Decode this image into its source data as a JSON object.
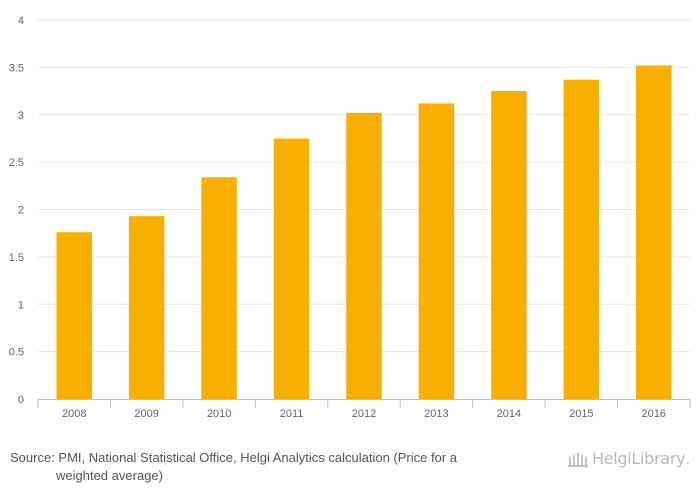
{
  "chart_data": {
    "type": "bar",
    "categories": [
      "2008",
      "2009",
      "2010",
      "2011",
      "2012",
      "2013",
      "2014",
      "2015",
      "2016"
    ],
    "values": [
      1.76,
      1.93,
      2.34,
      2.75,
      3.02,
      3.12,
      3.25,
      3.37,
      3.52
    ],
    "title": "",
    "xlabel": "",
    "ylabel": "",
    "ylim": [
      0,
      4
    ],
    "yticks": [
      "0",
      "0.5",
      "1",
      "1.5",
      "2",
      "2.5",
      "3",
      "3.5",
      "4"
    ],
    "grid": true,
    "bar_color": "#F8AF00",
    "grid_color": "#E6E6E6",
    "axis_color": "#C0C0C0"
  },
  "footer": {
    "source_line1": "Source: PMI, National Statistical Office, Helgi Analytics calculation (Price for a",
    "source_line2": "weighted average)",
    "logo_text": "HelgiLibrary",
    "logo_icon": "library-building-icon"
  }
}
